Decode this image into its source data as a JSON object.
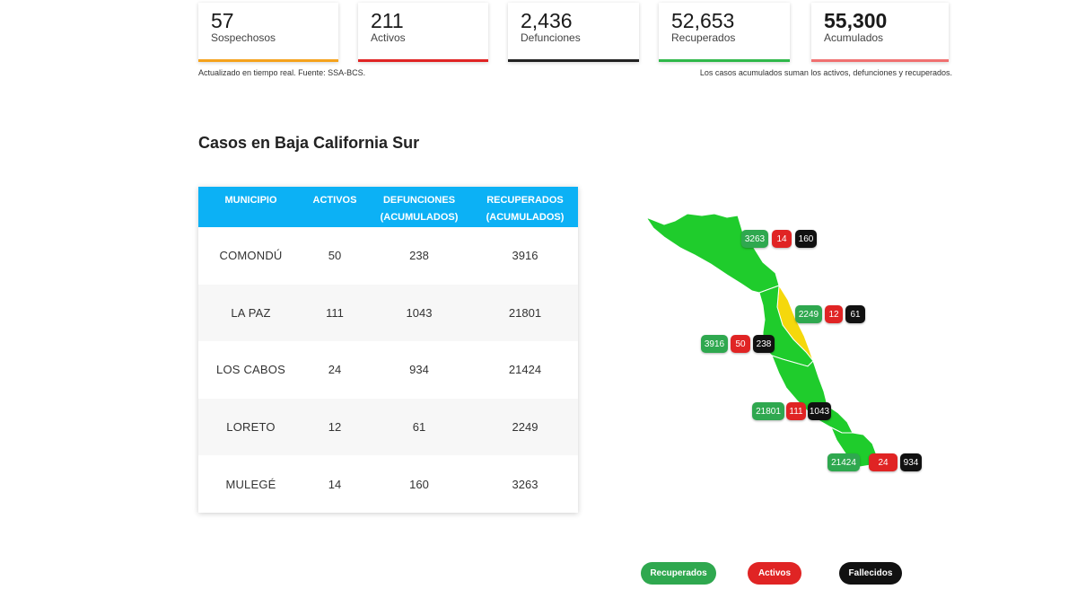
{
  "colors": {
    "sospechosos": "#f5a21c",
    "activos": "#e02424",
    "defunciones": "#222222",
    "recuperados": "#2fb84a",
    "acumulados": "#f07070",
    "table_header": "#0cb1f5",
    "map_green": "#1fcc2c",
    "map_yellow": "#f5d80c"
  },
  "stats": [
    {
      "value": "57",
      "label": "Sospechosos"
    },
    {
      "value": "211",
      "label": "Activos"
    },
    {
      "value": "2,436",
      "label": "Defunciones"
    },
    {
      "value": "52,653",
      "label": "Recuperados"
    },
    {
      "value": "55,300",
      "label": "Acumulados"
    }
  ],
  "notes": {
    "left": "Actualizado en tiempo real. Fuente: SSA-BCS.",
    "right": "Los casos acumulados suman los activos, defunciones y recuperados."
  },
  "section_title": "Casos en Baja California Sur",
  "table": {
    "headers": [
      "MUNICIPIO",
      "ACTIVOS",
      "DEFUNCIONES\n(ACUMULADOS)",
      "RECUPERADOS\n(ACUMULADOS)"
    ],
    "header_lines": {
      "h1": "MUNICIPIO",
      "h2": "ACTIVOS",
      "h3a": "DEFUNCIONES",
      "h3b": "(ACUMULADOS)",
      "h4a": "RECUPERADOS",
      "h4b": "(ACUMULADOS)"
    },
    "rows": [
      {
        "municipio": "COMONDÚ",
        "activos": "50",
        "defunciones": "238",
        "recuperados": "3916"
      },
      {
        "municipio": "LA PAZ",
        "activos": "111",
        "defunciones": "1043",
        "recuperados": "21801"
      },
      {
        "municipio": "LOS CABOS",
        "activos": "24",
        "defunciones": "934",
        "recuperados": "21424"
      },
      {
        "municipio": "LORETO",
        "activos": "12",
        "defunciones": "61",
        "recuperados": "2249"
      },
      {
        "municipio": "MULEGÉ",
        "activos": "14",
        "defunciones": "160",
        "recuperados": "3263"
      }
    ]
  },
  "map": {
    "mulege": {
      "recuperados": "3263",
      "activos": "14",
      "fallecidos": "160"
    },
    "loreto": {
      "recuperados": "2249",
      "activos": "12",
      "fallecidos": "61"
    },
    "comondu": {
      "recuperados": "3916",
      "activos": "50",
      "fallecidos": "238"
    },
    "lapaz": {
      "recuperados": "21801",
      "activos": "111",
      "fallecidos": "1043"
    },
    "loscabos": {
      "recuperados": "21424",
      "activos": "24",
      "fallecidos": "934"
    }
  },
  "legend": {
    "recuperados": "Recuperados",
    "activos": "Activos",
    "fallecidos": "Fallecidos"
  }
}
